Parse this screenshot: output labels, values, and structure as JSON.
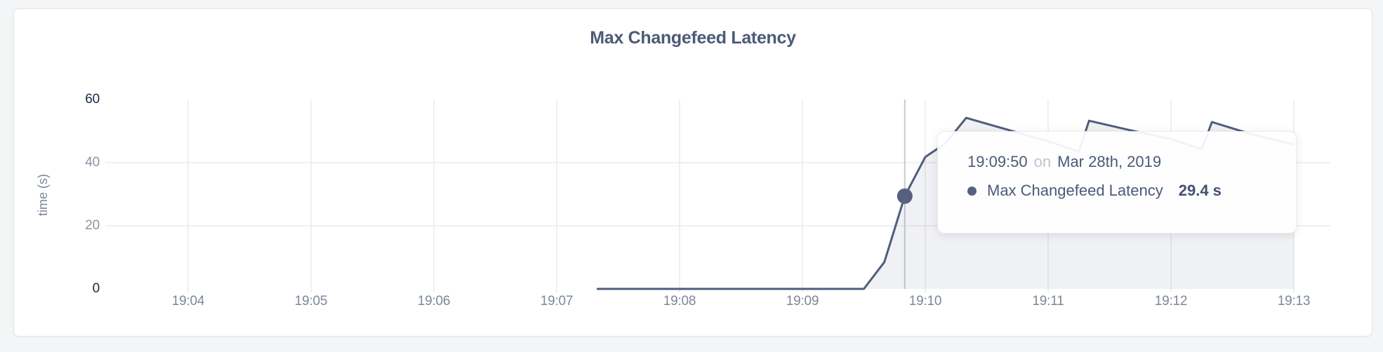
{
  "page": {
    "background": "#f4f5f6"
  },
  "card": {
    "title": "Max Changefeed Latency"
  },
  "chart_data": {
    "type": "area",
    "title": "Max Changefeed Latency",
    "xlabel": "",
    "ylabel": "time (s)",
    "ylim": [
      0,
      60
    ],
    "grid": true,
    "legend_position": "none",
    "y_ticks": [
      {
        "label": "0",
        "value": 0,
        "strong": true,
        "gridline": false
      },
      {
        "label": "20",
        "value": 20,
        "strong": false,
        "gridline": true
      },
      {
        "label": "40",
        "value": 40,
        "strong": false,
        "gridline": true
      },
      {
        "label": "60",
        "value": 60,
        "strong": true,
        "gridline": false
      }
    ],
    "x_ticks": [
      {
        "label": "19:04",
        "time": "19:04:00"
      },
      {
        "label": "19:05",
        "time": "19:05:00"
      },
      {
        "label": "19:06",
        "time": "19:06:00"
      },
      {
        "label": "19:07",
        "time": "19:07:00"
      },
      {
        "label": "19:08",
        "time": "19:08:00"
      },
      {
        "label": "19:09",
        "time": "19:09:00"
      },
      {
        "label": "19:10",
        "time": "19:10:00"
      },
      {
        "label": "19:11",
        "time": "19:11:00"
      },
      {
        "label": "19:12",
        "time": "19:12:00"
      },
      {
        "label": "19:13",
        "time": "19:13:00"
      }
    ],
    "series": [
      {
        "name": "Max Changefeed Latency",
        "unit": "s",
        "points": [
          {
            "time": "19:07:20",
            "value": 0
          },
          {
            "time": "19:09:30",
            "value": 0
          },
          {
            "time": "19:09:40",
            "value": 8.5
          },
          {
            "time": "19:09:50",
            "value": 29.4
          },
          {
            "time": "19:10:00",
            "value": 41.8
          },
          {
            "time": "19:10:10",
            "value": 46.2
          },
          {
            "time": "19:10:20",
            "value": 54.2
          },
          {
            "time": "19:10:40",
            "value": 50.5
          },
          {
            "time": "19:11:00",
            "value": 46.8
          },
          {
            "time": "19:11:15",
            "value": 43.5
          },
          {
            "time": "19:11:20",
            "value": 53.3
          },
          {
            "time": "19:11:40",
            "value": 50.3
          },
          {
            "time": "19:12:00",
            "value": 47.5
          },
          {
            "time": "19:12:15",
            "value": 44.2
          },
          {
            "time": "19:12:20",
            "value": 52.9
          },
          {
            "time": "19:12:40",
            "value": 48.9
          },
          {
            "time": "19:13:00",
            "value": 45.8
          }
        ]
      }
    ],
    "hover_point": {
      "time": "19:09:50",
      "value": 29.4
    }
  },
  "tooltip": {
    "time": "19:09:50",
    "conjunction": "on",
    "date": "Mar 28th, 2019",
    "series_name": "Max Changefeed Latency",
    "value": "29.4 s"
  },
  "colors": {
    "line": "#4f5d7d",
    "area_fill": "rgba(86,97,128,0.09)",
    "dot": "#566180",
    "gridline": "#ebebeb",
    "crosshair": "#c9ccd2",
    "title": "#4c5a77",
    "tick_strong": "#14294b",
    "tick_muted": "#8b93a3",
    "x_tick": "#7d8799"
  }
}
